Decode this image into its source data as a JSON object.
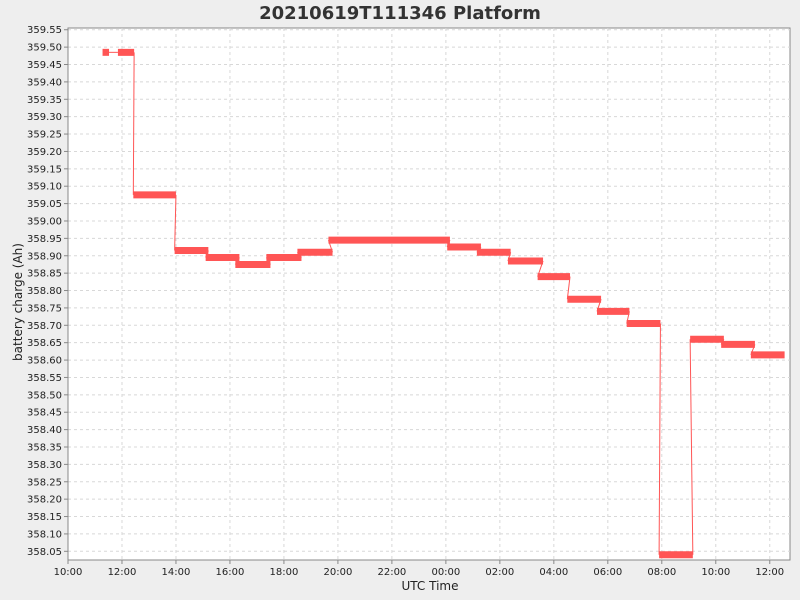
{
  "chart_data": {
    "type": "line",
    "title": "20210619T111346 Platform",
    "xlabel": "UTC Time",
    "ylabel": "battery charge (Ah)",
    "x_unit": "hours",
    "xlim": [
      10.0,
      36.75
    ],
    "ylim": [
      358.025,
      359.555
    ],
    "grid": true,
    "legend": "none",
    "x_ticks": [
      {
        "value": 10,
        "label": "10:00"
      },
      {
        "value": 12,
        "label": "12:00"
      },
      {
        "value": 14,
        "label": "14:00"
      },
      {
        "value": 16,
        "label": "16:00"
      },
      {
        "value": 18,
        "label": "18:00"
      },
      {
        "value": 20,
        "label": "20:00"
      },
      {
        "value": 22,
        "label": "22:00"
      },
      {
        "value": 24,
        "label": "00:00"
      },
      {
        "value": 26,
        "label": "02:00"
      },
      {
        "value": 28,
        "label": "04:00"
      },
      {
        "value": 30,
        "label": "06:00"
      },
      {
        "value": 32,
        "label": "08:00"
      },
      {
        "value": 34,
        "label": "10:00"
      },
      {
        "value": 36,
        "label": "12:00"
      }
    ],
    "y_ticks": [
      "358.05",
      "358.10",
      "358.15",
      "358.20",
      "358.25",
      "358.30",
      "358.35",
      "358.40",
      "358.45",
      "358.50",
      "358.55",
      "358.60",
      "358.65",
      "358.70",
      "358.75",
      "358.80",
      "358.85",
      "358.90",
      "358.95",
      "359.00",
      "359.05",
      "359.10",
      "359.15",
      "359.20",
      "359.25",
      "359.30",
      "359.35",
      "359.40",
      "359.45",
      "359.50",
      "359.55"
    ],
    "series": [
      {
        "color": "#ff5555",
        "segments": [
          {
            "x0": 11.28,
            "x1": 11.52,
            "y": 359.485
          },
          {
            "x0": 11.85,
            "x1": 12.45,
            "y": 359.485
          },
          {
            "x0": 12.42,
            "x1": 14.0,
            "y": 359.075
          },
          {
            "x0": 13.95,
            "x1": 15.2,
            "y": 358.915
          },
          {
            "x0": 15.1,
            "x1": 16.35,
            "y": 358.895
          },
          {
            "x0": 16.2,
            "x1": 17.5,
            "y": 358.875
          },
          {
            "x0": 17.35,
            "x1": 18.65,
            "y": 358.895
          },
          {
            "x0": 18.5,
            "x1": 19.8,
            "y": 358.91
          },
          {
            "x0": 19.65,
            "x1": 24.15,
            "y": 358.945
          },
          {
            "x0": 24.05,
            "x1": 25.3,
            "y": 358.925
          },
          {
            "x0": 25.15,
            "x1": 26.4,
            "y": 358.91
          },
          {
            "x0": 26.3,
            "x1": 27.6,
            "y": 358.885
          },
          {
            "x0": 27.4,
            "x1": 28.6,
            "y": 358.84
          },
          {
            "x0": 28.5,
            "x1": 29.75,
            "y": 358.775
          },
          {
            "x0": 29.6,
            "x1": 30.8,
            "y": 358.74
          },
          {
            "x0": 30.7,
            "x1": 31.95,
            "y": 358.705
          },
          {
            "x0": 31.9,
            "x1": 33.15,
            "y": 358.04
          },
          {
            "x0": 33.05,
            "x1": 34.3,
            "y": 358.66
          },
          {
            "x0": 34.2,
            "x1": 35.45,
            "y": 358.645
          },
          {
            "x0": 35.3,
            "x1": 36.55,
            "y": 358.615
          }
        ]
      }
    ]
  }
}
